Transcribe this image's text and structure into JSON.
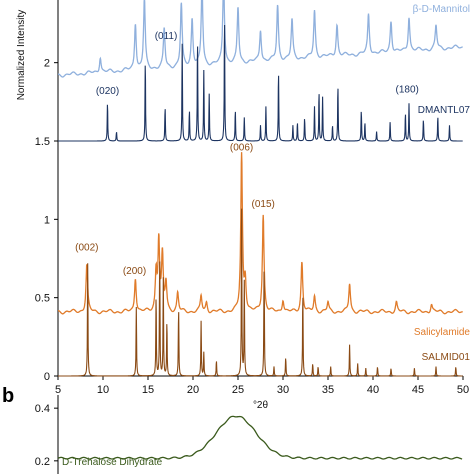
{
  "chart_data": [
    {
      "type": "line",
      "panel": "a",
      "xlabel": "°2θ",
      "ylabel": "Normalized Intensity",
      "xlim": [
        5,
        50
      ],
      "ylim": [
        0,
        2.4
      ],
      "xticks": [
        5,
        10,
        15,
        20,
        25,
        30,
        35,
        40,
        45,
        50
      ],
      "yticks": [
        0,
        0.5,
        1,
        1.5,
        2
      ],
      "ytick_labels": [
        "0",
        "0.5",
        "1",
        "1.5",
        "2"
      ],
      "series": [
        {
          "name": "β-D-Mannitol",
          "color": "#8fb0dd",
          "baseline": 1.92,
          "peaks": [
            {
              "x": 9.7,
              "y": 0.1
            },
            {
              "x": 13.6,
              "y": 0.3
            },
            {
              "x": 14.6,
              "y": 0.45
            },
            {
              "x": 16.8,
              "y": 0.25
            },
            {
              "x": 18.7,
              "y": 0.4
            },
            {
              "x": 19.9,
              "y": 0.3
            },
            {
              "x": 21.0,
              "y": 0.5
            },
            {
              "x": 23.4,
              "y": 0.55
            },
            {
              "x": 25.0,
              "y": 0.35
            },
            {
              "x": 27.5,
              "y": 0.2
            },
            {
              "x": 29.4,
              "y": 0.35
            },
            {
              "x": 31.0,
              "y": 0.25
            },
            {
              "x": 33.5,
              "y": 0.3
            },
            {
              "x": 36.0,
              "y": 0.2
            },
            {
              "x": 39.5,
              "y": 0.25
            },
            {
              "x": 42.0,
              "y": 0.2
            },
            {
              "x": 44.0,
              "y": 0.22
            },
            {
              "x": 47.0,
              "y": 0.15
            }
          ]
        },
        {
          "name": "DMANTL07",
          "color": "#1d3461",
          "baseline": 1.5,
          "peaks": [
            {
              "x": 10.5,
              "y": 0.25
            },
            {
              "x": 11.5,
              "y": 0.06
            },
            {
              "x": 14.7,
              "y": 0.52
            },
            {
              "x": 16.9,
              "y": 0.22
            },
            {
              "x": 18.8,
              "y": 0.62
            },
            {
              "x": 19.6,
              "y": 0.2
            },
            {
              "x": 20.5,
              "y": 0.65
            },
            {
              "x": 21.2,
              "y": 0.45
            },
            {
              "x": 21.8,
              "y": 0.3
            },
            {
              "x": 23.5,
              "y": 0.8
            },
            {
              "x": 24.7,
              "y": 0.2
            },
            {
              "x": 25.7,
              "y": 0.15
            },
            {
              "x": 27.5,
              "y": 0.1
            },
            {
              "x": 28.1,
              "y": 0.22
            },
            {
              "x": 29.5,
              "y": 0.45
            },
            {
              "x": 31.1,
              "y": 0.1
            },
            {
              "x": 31.6,
              "y": 0.12
            },
            {
              "x": 32.4,
              "y": 0.15
            },
            {
              "x": 33.5,
              "y": 0.22
            },
            {
              "x": 34.0,
              "y": 0.32
            },
            {
              "x": 34.4,
              "y": 0.28
            },
            {
              "x": 35.5,
              "y": 0.1
            },
            {
              "x": 36.1,
              "y": 0.36
            },
            {
              "x": 38.7,
              "y": 0.2
            },
            {
              "x": 39.1,
              "y": 0.12
            },
            {
              "x": 40.4,
              "y": 0.06
            },
            {
              "x": 41.9,
              "y": 0.12
            },
            {
              "x": 43.6,
              "y": 0.18
            },
            {
              "x": 44.0,
              "y": 0.24
            },
            {
              "x": 45.6,
              "y": 0.14
            },
            {
              "x": 47.2,
              "y": 0.16
            },
            {
              "x": 48.5,
              "y": 0.1
            }
          ]
        },
        {
          "name": "Salicylamide",
          "color": "#e07b2a",
          "baseline": 0.41,
          "peaks": [
            {
              "x": 8.2,
              "y": 0.3
            },
            {
              "x": 13.6,
              "y": 0.22
            },
            {
              "x": 15.9,
              "y": 0.25
            },
            {
              "x": 16.2,
              "y": 0.45
            },
            {
              "x": 16.6,
              "y": 0.35
            },
            {
              "x": 17.0,
              "y": 0.18
            },
            {
              "x": 18.3,
              "y": 0.12
            },
            {
              "x": 20.9,
              "y": 0.1
            },
            {
              "x": 21.5,
              "y": 0.06
            },
            {
              "x": 25.4,
              "y": 1.0
            },
            {
              "x": 25.8,
              "y": 0.2
            },
            {
              "x": 27.8,
              "y": 0.62
            },
            {
              "x": 30.0,
              "y": 0.08
            },
            {
              "x": 32.1,
              "y": 0.32
            },
            {
              "x": 33.5,
              "y": 0.1
            },
            {
              "x": 35.0,
              "y": 0.06
            },
            {
              "x": 37.4,
              "y": 0.18
            },
            {
              "x": 42.6,
              "y": 0.06
            },
            {
              "x": 46.5,
              "y": 0.05
            }
          ]
        },
        {
          "name": "SALMID01",
          "color": "#8a4a14",
          "baseline": 0.0,
          "peaks": [
            {
              "x": 8.3,
              "y": 0.72
            },
            {
              "x": 13.7,
              "y": 0.44
            },
            {
              "x": 15.9,
              "y": 0.52
            },
            {
              "x": 16.3,
              "y": 0.78
            },
            {
              "x": 16.7,
              "y": 0.62
            },
            {
              "x": 17.1,
              "y": 0.35
            },
            {
              "x": 18.4,
              "y": 0.44
            },
            {
              "x": 20.9,
              "y": 0.35
            },
            {
              "x": 21.2,
              "y": 0.15
            },
            {
              "x": 22.6,
              "y": 0.1
            },
            {
              "x": 25.4,
              "y": 1.06
            },
            {
              "x": 25.7,
              "y": 0.6
            },
            {
              "x": 27.9,
              "y": 0.72
            },
            {
              "x": 29.0,
              "y": 0.06
            },
            {
              "x": 30.3,
              "y": 0.12
            },
            {
              "x": 32.2,
              "y": 0.54
            },
            {
              "x": 33.3,
              "y": 0.08
            },
            {
              "x": 33.9,
              "y": 0.06
            },
            {
              "x": 35.3,
              "y": 0.06
            },
            {
              "x": 37.4,
              "y": 0.2
            },
            {
              "x": 38.3,
              "y": 0.08
            },
            {
              "x": 39.2,
              "y": 0.05
            },
            {
              "x": 40.5,
              "y": 0.06
            },
            {
              "x": 42.0,
              "y": 0.05
            },
            {
              "x": 44.6,
              "y": 0.05
            },
            {
              "x": 47.0,
              "y": 0.06
            },
            {
              "x": 49.2,
              "y": 0.06
            }
          ]
        }
      ],
      "annotations": [
        {
          "text": "(020)",
          "x": 10.5,
          "y": 1.8,
          "color": "#1d3461"
        },
        {
          "text": "(011)",
          "x": 17.0,
          "y": 2.15,
          "color": "#1d3461"
        },
        {
          "text": "(180)",
          "x": 43.8,
          "y": 1.81,
          "color": "#1d3461"
        },
        {
          "text": "(006)",
          "x": 25.4,
          "y": 1.44,
          "color": "#8a4a14"
        },
        {
          "text": "(015)",
          "x": 27.8,
          "y": 1.08,
          "color": "#8a4a14"
        },
        {
          "text": "(002)",
          "x": 8.2,
          "y": 0.8,
          "color": "#8a4a14"
        },
        {
          "text": "(200)",
          "x": 13.5,
          "y": 0.65,
          "color": "#8a4a14"
        }
      ]
    },
    {
      "type": "line",
      "panel": "b",
      "yticks": [
        0.2,
        0.4
      ],
      "ytick_labels": [
        "0.2",
        "0.4"
      ],
      "ylim": [
        0.15,
        0.45
      ],
      "series": [
        {
          "name": "D-Trehalose Dihydrate",
          "color": "#3a5a1c",
          "peak_x": 24.8,
          "peak_y": 0.37,
          "baseline": 0.21
        }
      ]
    }
  ],
  "panel_labels": {
    "b": "b"
  }
}
